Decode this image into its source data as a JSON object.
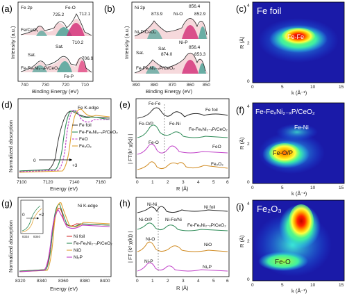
{
  "panels": [
    {
      "letter": "(a)",
      "edge": "",
      "header": "Fe 2p",
      "xlabel": "Binding Energy (eV)",
      "ylabel": "Intensity (a.u.)",
      "xticks": [
        "740",
        "730",
        "720",
        "710"
      ],
      "annotations": [
        "Fe 2p",
        "725.2",
        "Fe-O",
        "712.1",
        "Fe/CeO₂",
        "710.2",
        "Sat.",
        "Sat.",
        "706.9",
        "Fe-FeₓNi₂₋ₓP/CeO₂",
        "Fe-P"
      ],
      "series": []
    },
    {
      "letter": "(b)",
      "edge": "",
      "header": "Ni 2p",
      "xlabel": "Binding Energy (eV)",
      "ylabel": "Intensity (a.u.)",
      "xticks": [
        "890",
        "880",
        "870",
        "860",
        "850"
      ],
      "annotations": [
        "Ni 2p",
        "873.9",
        "Ni-O",
        "856.4",
        "852.9",
        "Ni₂P/CeO₂",
        "Ni-P",
        "Sat.",
        "Sat.",
        "874.0",
        "856.4",
        "853.3",
        "Fe-FeₓNi₂₋ₓP/CeO₂"
      ],
      "series": []
    },
    {
      "letter": "(c)",
      "edge": "",
      "header": "Fe foil",
      "xlabel": "k (Å⁻¹)",
      "ylabel": "R (Å)",
      "xticks": [
        "0",
        "5",
        "10",
        "15"
      ],
      "yticks": [
        "0",
        "2",
        "4"
      ],
      "annotations": [
        "Fe foil",
        "Fe-Fe"
      ],
      "series": []
    },
    {
      "letter": "(d)",
      "edge": "Fe K-edge",
      "header": "",
      "xlabel": "Energy (eV)",
      "ylabel": "Normalized absorption",
      "xticks": [
        "7100",
        "7120",
        "7140",
        "7160"
      ],
      "annotations": [
        "0",
        "+3"
      ],
      "series": [
        "Fe foil",
        "Fe-FeₓNi₂₋ₓP/CeO₂",
        "FeO",
        "Fe₂O₃"
      ]
    },
    {
      "letter": "(e)",
      "edge": "",
      "header": "",
      "xlabel": "R (Å)",
      "ylabel": "| FT(k³ χ(k)) |",
      "xticks": [
        "0",
        "1",
        "2",
        "3",
        "4",
        "5",
        "6"
      ],
      "annotations": [
        "Fe-Fe",
        "Fe foil",
        "Fe-O/P",
        "Fe-Ni",
        "Fe-FeₓNi₂₋ₓP/CeO₂",
        "Fe-O",
        "FeO",
        "Fe₂O₃"
      ],
      "series": []
    },
    {
      "letter": "(f)",
      "edge": "",
      "header": "Fe-FeₓNi₂₋ₓP/CeO₂",
      "xlabel": "k (Å⁻¹)",
      "ylabel": "R (Å)",
      "xticks": [
        "0",
        "5",
        "10",
        "15"
      ],
      "yticks": [
        "0",
        "2",
        "4"
      ],
      "annotations": [
        "Fe-Ni",
        "Fe-O/P"
      ],
      "series": []
    },
    {
      "letter": "(g)",
      "edge": "Ni K-edge",
      "header": "",
      "xlabel": "Energy (eV)",
      "ylabel": "Normalized absorption",
      "xticks": [
        "8320",
        "8340",
        "8360",
        "8380",
        "8400"
      ],
      "annotations": [
        "0",
        "+2",
        "8334",
        "8340"
      ],
      "series": [
        "Ni foil",
        "Fe-FeₓNi₂₋ₓP/CeO₂",
        "NiO",
        "Ni₂P"
      ]
    },
    {
      "letter": "(h)",
      "edge": "",
      "header": "",
      "xlabel": "R (Å)",
      "ylabel": "| FT (k³ χ(k)) |",
      "xticks": [
        "0",
        "1",
        "2",
        "3",
        "4",
        "5",
        "6"
      ],
      "annotations": [
        "Ni-Ni",
        "Ni foil",
        "Ni-O/P",
        "Ni-Fe/Ni",
        "Fe-FeₓNi₂₋ₓP/CeO₂",
        "Ni-O",
        "NiO",
        "Ni-P",
        "Ni₂P"
      ],
      "series": []
    },
    {
      "letter": "(i)",
      "edge": "",
      "header": "Fe₂O₃",
      "xlabel": "k (Å⁻¹)",
      "ylabel": "R (Å)",
      "xticks": [
        "0",
        "5",
        "10",
        "15"
      ],
      "yticks": [
        "0",
        "2",
        "4"
      ],
      "annotations": [
        "Fe₂O₃",
        "Fe-O"
      ],
      "series": []
    }
  ],
  "chart_data": [
    {
      "type": "line",
      "title": "",
      "xlabel": "Binding Energy (eV)",
      "ylabel": "Intensity (a.u.)",
      "xlim": [
        740,
        705
      ],
      "peaks_eV": [
        725.2,
        712.1,
        710.2,
        706.9
      ],
      "series": [
        {
          "name": "Fe/CeO₂"
        },
        {
          "name": "Fe-FeₓNi₂₋ₓP/CeO₂"
        }
      ]
    },
    {
      "type": "line",
      "title": "",
      "xlabel": "Binding Energy (eV)",
      "ylabel": "Intensity (a.u.)",
      "xlim": [
        890,
        850
      ],
      "peaks_eV": [
        873.9,
        856.4,
        852.9,
        874.0,
        856.4,
        853.3
      ],
      "series": [
        {
          "name": "Ni₂P/CeO₂"
        },
        {
          "name": "Fe-FeₓNi₂₋ₓP/CeO₂"
        }
      ]
    },
    {
      "type": "heatmap",
      "title": "Fe foil",
      "xlabel": "k (Å⁻¹)",
      "ylabel": "R (Å)",
      "xlim": [
        0,
        15
      ],
      "ylim": [
        0,
        4
      ],
      "hotspots": [
        {
          "label": "Fe-Fe",
          "k": 8,
          "R": 2.2,
          "intensity": 1.0
        }
      ]
    },
    {
      "type": "line",
      "title": "",
      "xlabel": "Energy (eV)",
      "ylabel": "Normalized absorption",
      "xlim": [
        7100,
        7170
      ],
      "series": [
        {
          "name": "Fe foil",
          "color": "#333333"
        },
        {
          "name": "Fe-FeₓNi₂₋ₓP/CeO₂",
          "color": "#2e8b57"
        },
        {
          "name": "FeO",
          "color": "#c040c8"
        },
        {
          "name": "Fe₂O₃",
          "color": "#e0a030"
        }
      ]
    },
    {
      "type": "line",
      "title": "",
      "xlabel": "R (Å)",
      "ylabel": "| FT(k³ χ(k)) |",
      "xlim": [
        0,
        6
      ],
      "series": [
        {
          "name": "Fe foil",
          "color": "#222222"
        },
        {
          "name": "Fe-FeₓNi₂₋ₓP/CeO₂",
          "color": "#2e8b57"
        },
        {
          "name": "FeO",
          "color": "#c040c8"
        },
        {
          "name": "Fe₂O₃",
          "color": "#d08a20"
        }
      ]
    },
    {
      "type": "heatmap",
      "title": "Fe-FeₓNi₂₋ₓP/CeO₂",
      "xlabel": "k (Å⁻¹)",
      "ylabel": "R (Å)",
      "xlim": [
        0,
        15
      ],
      "ylim": [
        0,
        4
      ],
      "hotspots": [
        {
          "label": "Fe-O/P",
          "k": 5,
          "R": 1.5,
          "intensity": 1.0
        },
        {
          "label": "Fe-Ni",
          "k": 6,
          "R": 2.6,
          "intensity": 0.45
        }
      ]
    },
    {
      "type": "line",
      "title": "",
      "xlabel": "Energy (eV)",
      "ylabel": "Normalized absorption",
      "xlim": [
        8320,
        8400
      ],
      "series": [
        {
          "name": "Ni foil",
          "color": "#d02020"
        },
        {
          "name": "Fe-FeₓNi₂₋ₓP/CeO₂",
          "color": "#2e8b57"
        },
        {
          "name": "NiO",
          "color": "#e0a030"
        },
        {
          "name": "Ni₂P",
          "color": "#c040c8"
        }
      ]
    },
    {
      "type": "line",
      "title": "",
      "xlabel": "R (Å)",
      "ylabel": "| FT (k³ χ(k)) |",
      "xlim": [
        0,
        6
      ],
      "series": [
        {
          "name": "Ni foil",
          "color": "#222222"
        },
        {
          "name": "Fe-FeₓNi₂₋ₓP/CeO₂",
          "color": "#2e8b57"
        },
        {
          "name": "NiO",
          "color": "#d08a20"
        },
        {
          "name": "Ni₂P",
          "color": "#c040c8"
        }
      ]
    },
    {
      "type": "heatmap",
      "title": "Fe₂O₃",
      "xlabel": "k (Å⁻¹)",
      "ylabel": "R (Å)",
      "xlim": [
        0,
        15
      ],
      "ylim": [
        0,
        4
      ],
      "hotspots": [
        {
          "label": "Fe₂O₃",
          "k": 8,
          "R": 2.9,
          "intensity": 1.0
        },
        {
          "label": "Fe-O",
          "k": 5,
          "R": 1.4,
          "intensity": 0.5
        }
      ]
    }
  ]
}
